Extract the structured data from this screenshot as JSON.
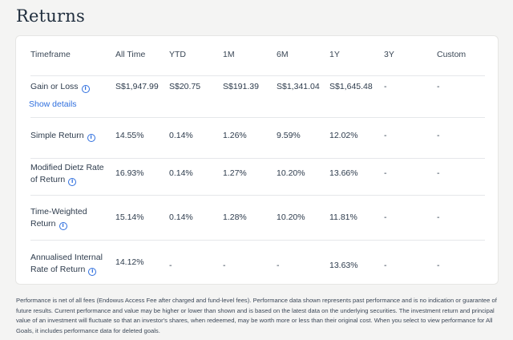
{
  "page": {
    "title": "Returns"
  },
  "table": {
    "columns": [
      "Timeframe",
      "All Time",
      "YTD",
      "1M",
      "6M",
      "1Y",
      "3Y",
      "Custom"
    ],
    "rows": [
      {
        "label_lines": [
          "Gain or Loss"
        ],
        "values": [
          "S$1,947.99",
          "S$20.75",
          "S$191.39",
          "S$1,341.04",
          "S$1,645.48",
          "-",
          "-"
        ],
        "link": "Show details"
      },
      {
        "label_lines": [
          "Simple Return"
        ],
        "values": [
          "14.55%",
          "0.14%",
          "1.26%",
          "9.59%",
          "12.02%",
          "-",
          "-"
        ]
      },
      {
        "label_lines": [
          "Modified Dietz Rate",
          "of Return"
        ],
        "values": [
          "16.93%",
          "0.14%",
          "1.27%",
          "10.20%",
          "13.66%",
          "-",
          "-"
        ]
      },
      {
        "label_lines": [
          "Time-Weighted",
          "Return"
        ],
        "values": [
          "15.14%",
          "0.14%",
          "1.28%",
          "10.20%",
          "11.81%",
          "-",
          "-"
        ]
      },
      {
        "label_lines": [
          "Annualised Internal",
          "Rate of Return"
        ],
        "values": [
          "14.12%",
          "-",
          "-",
          "-",
          "13.63%",
          "-",
          "-"
        ]
      }
    ]
  },
  "footnote": "Performance is net of all fees (Endowus Access Fee after charged and fund-level fees). Performance data shown represents past performance and is no indication or guarantee of future results. Current performance and value may be higher or lower than shown and is based on the latest data on the underlying securities. The investment return and principal value of an investment will fluctuate so that an investor's shares, when redeemed, may be worth more or less than their original cost. When you select to view performance for All Goals, it includes performance data for deleted goals.",
  "colors": {
    "accent": "#2f6fde",
    "text": "#2d3b4c",
    "divider": "#e5e7ea"
  },
  "icons": {
    "info": "info-circle-icon"
  }
}
